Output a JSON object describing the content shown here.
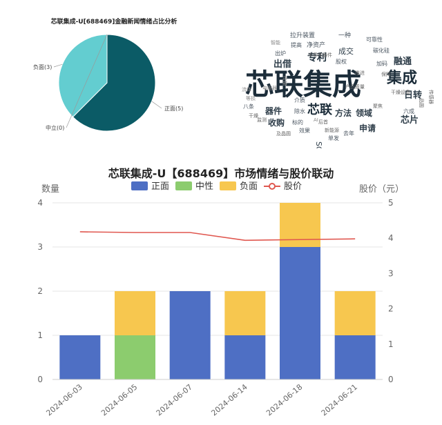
{
  "pie_chart": {
    "title": "芯联集成-U[688469]金融新闻情绪占比分析",
    "slices": [
      {
        "label": "正面(5)",
        "value": 5,
        "color": "#0b5b66"
      },
      {
        "label": "负面(3)",
        "value": 3,
        "color": "#63cdd0"
      },
      {
        "label": "中立(0)",
        "value": 0,
        "color": "#8fd3cf"
      }
    ]
  },
  "word_cloud": {
    "words": [
      {
        "text": "芯联集成",
        "size": 42,
        "color": "#1c2d3a"
      },
      {
        "text": "集成",
        "size": 22,
        "color": "#1c2d3a"
      },
      {
        "text": "芯联",
        "size": 18,
        "color": "#1c2d3a"
      },
      {
        "text": "专利",
        "size": 14,
        "color": "#1c2d3a"
      },
      {
        "text": "出借",
        "size": 13,
        "color": "#2f3e4a"
      },
      {
        "text": "融通",
        "size": 13,
        "color": "#2f3e4a"
      },
      {
        "text": "日转",
        "size": 13,
        "color": "#2f3e4a"
      },
      {
        "text": "芯片",
        "size": 13,
        "color": "#2f3e4a"
      },
      {
        "text": "领域",
        "size": 12,
        "color": "#2f3e4a"
      },
      {
        "text": "申请",
        "size": 12,
        "color": "#2f3e4a"
      },
      {
        "text": "方法",
        "size": 12,
        "color": "#2f3e4a"
      },
      {
        "text": "器件",
        "size": 12,
        "color": "#2f3e4a"
      },
      {
        "text": "收购",
        "size": 12,
        "color": "#2f3e4a"
      },
      {
        "text": "成交",
        "size": 11,
        "color": "#2f3e4a"
      },
      {
        "text": "SOI",
        "size": 11,
        "color": "#2f3e4a"
      },
      {
        "text": "净资产",
        "size": 9,
        "color": "#4a5560"
      },
      {
        "text": "拉升",
        "size": 9,
        "color": "#4a5560"
      },
      {
        "text": "装置",
        "size": 9,
        "color": "#4a5560"
      },
      {
        "text": "一种",
        "size": 9,
        "color": "#4a5560"
      },
      {
        "text": "可靠性",
        "size": 8,
        "color": "#4a5560"
      },
      {
        "text": "碳化硅",
        "size": 8,
        "color": "#4a5560"
      },
      {
        "text": "加码",
        "size": 8,
        "color": "#4a5560"
      },
      {
        "text": "保障",
        "size": 7,
        "color": "#666"
      },
      {
        "text": "股权",
        "size": 8,
        "color": "#4a5560"
      },
      {
        "text": "推进",
        "size": 7,
        "color": "#666"
      },
      {
        "text": "干燥设备",
        "size": 7,
        "color": "#666"
      },
      {
        "text": "品圆",
        "size": 7,
        "color": "#666"
      },
      {
        "text": "传感器",
        "size": 7,
        "color": "#666"
      },
      {
        "text": "六成",
        "size": 8,
        "color": "#4a5560"
      },
      {
        "text": "聚焦",
        "size": 7,
        "color": "#666"
      },
      {
        "text": "产品质量",
        "size": 7,
        "color": "#666"
      },
      {
        "text": "介质",
        "size": 8,
        "color": "#4a5560"
      },
      {
        "text": "除水",
        "size": 8,
        "color": "#4a5560"
      },
      {
        "text": "标的",
        "size": 8,
        "color": "#4a5560"
      },
      {
        "text": "后首",
        "size": 7,
        "color": "#666"
      },
      {
        "text": "效果",
        "size": 8,
        "color": "#4a5560"
      },
      {
        "text": "新能源",
        "size": 7,
        "color": "#666"
      },
      {
        "text": "去年",
        "size": 8,
        "color": "#4a5560"
      },
      {
        "text": "单发",
        "size": 8,
        "color": "#4a5560"
      },
      {
        "text": "八条",
        "size": 8,
        "color": "#4a5560"
      },
      {
        "text": "干燥",
        "size": 7,
        "color": "#666"
      },
      {
        "text": "监测",
        "size": 7,
        "color": "#666"
      },
      {
        "text": "及晶圆",
        "size": 7,
        "color": "#666"
      },
      {
        "text": "提高",
        "size": 8,
        "color": "#4a5560"
      },
      {
        "text": "出炉",
        "size": 8,
        "color": "#4a5560"
      },
      {
        "text": "半导体器件",
        "size": 7,
        "color": "#666"
      },
      {
        "text": "智能",
        "size": 7,
        "color": "#888"
      },
      {
        "text": "电阻器",
        "size": 7,
        "color": "#888"
      },
      {
        "text": "等损",
        "size": 7,
        "color": "#888"
      },
      {
        "text": "流体",
        "size": 7,
        "color": "#888"
      },
      {
        "text": "传输",
        "size": 7,
        "color": "#888"
      },
      {
        "text": "AI",
        "size": 7,
        "color": "#888"
      }
    ]
  },
  "chart_data": {
    "type": "bar",
    "title": "芯联集成-U【688469】市场情绪与股价联动",
    "categories": [
      "2024-06-03",
      "2024-06-05",
      "2024-06-07",
      "2024-06-14",
      "2024-06-18",
      "2024-06-21"
    ],
    "series": [
      {
        "name": "正面",
        "type": "bar",
        "stack": "sentiment",
        "color": "#4e6fc4",
        "values": [
          1,
          0,
          2,
          1,
          3,
          1
        ]
      },
      {
        "name": "中性",
        "type": "bar",
        "stack": "sentiment",
        "color": "#8ccc6e",
        "values": [
          0,
          1,
          0,
          0,
          0,
          0
        ]
      },
      {
        "name": "负面",
        "type": "bar",
        "stack": "sentiment",
        "color": "#f7c74f",
        "values": [
          0,
          1,
          0,
          1,
          1,
          1
        ]
      },
      {
        "name": "股价",
        "type": "line",
        "axis": "right",
        "color": "#e0574f",
        "values": [
          4.18,
          4.16,
          4.16,
          3.94,
          3.96,
          3.98
        ]
      }
    ],
    "ylabel_left": "数量",
    "ylabel_right": "股价（元）",
    "ylim_left": [
      0,
      4
    ],
    "ylim_right": [
      0,
      5
    ],
    "yticks_left": [
      "0",
      "1",
      "2",
      "3",
      "4"
    ],
    "yticks_right": [
      "0",
      "1",
      "2",
      "3",
      "4",
      "5"
    ],
    "grid": true,
    "legend": "top-center"
  }
}
